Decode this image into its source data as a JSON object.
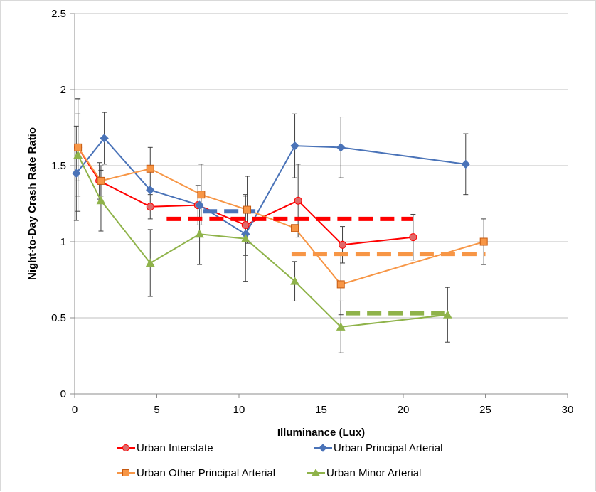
{
  "chart_data": {
    "type": "line",
    "xlabel": "Illuminance (Lux)",
    "ylabel": "Night-to-Day Crash Rate Ratio",
    "xlim": [
      0,
      30
    ],
    "ylim": [
      0,
      2.5
    ],
    "x_ticks": [
      "0",
      "5",
      "10",
      "15",
      "20",
      "25",
      "30"
    ],
    "y_ticks": [
      "0",
      "0.5",
      "1",
      "1.5",
      "2",
      "2.5"
    ],
    "grid": "horizontal",
    "legend_position": "bottom",
    "series": [
      {
        "name": "Urban Interstate",
        "color": "#ff0000",
        "marker": "circle",
        "points": [
          {
            "x": 0.2,
            "y": 1.62,
            "err": 0.22
          },
          {
            "x": 1.5,
            "y": 1.4,
            "err": 0.12
          },
          {
            "x": 4.6,
            "y": 1.23,
            "err": 0.08
          },
          {
            "x": 7.5,
            "y": 1.24,
            "err": 0.13
          },
          {
            "x": 10.4,
            "y": 1.11,
            "err": 0.2
          },
          {
            "x": 13.6,
            "y": 1.27,
            "err": 0.24
          },
          {
            "x": 16.3,
            "y": 0.98,
            "err": 0.12
          },
          {
            "x": 20.6,
            "y": 1.03,
            "err": 0.15
          }
        ],
        "average": {
          "y": 1.15,
          "x_from": 5.6,
          "x_to": 20.6
        }
      },
      {
        "name": "Urban Principal Arterial",
        "color": "#4a73b8",
        "marker": "diamond",
        "points": [
          {
            "x": 0.1,
            "y": 1.45,
            "err": 0.31
          },
          {
            "x": 1.8,
            "y": 1.68,
            "err": 0.17
          },
          {
            "x": 4.6,
            "y": 1.34,
            "err": 0.0
          },
          {
            "x": 7.6,
            "y": 1.24,
            "err": 0.0
          },
          {
            "x": 10.4,
            "y": 1.05,
            "err": 0.0
          },
          {
            "x": 13.4,
            "y": 1.63,
            "err": 0.21
          },
          {
            "x": 16.2,
            "y": 1.62,
            "err": 0.2
          },
          {
            "x": 23.8,
            "y": 1.51,
            "err": 0.2
          }
        ],
        "average": {
          "y": 1.2,
          "x_from": 7.8,
          "x_to": 11.0
        }
      },
      {
        "name": "Urban Other Principal Arterial",
        "color": "#f79646",
        "marker": "square",
        "points": [
          {
            "x": 0.2,
            "y": 1.62,
            "err": 0.32
          },
          {
            "x": 1.6,
            "y": 1.4,
            "err": 0.1
          },
          {
            "x": 4.6,
            "y": 1.48,
            "err": 0.14
          },
          {
            "x": 7.7,
            "y": 1.31,
            "err": 0.2
          },
          {
            "x": 10.5,
            "y": 1.21,
            "err": 0.22
          },
          {
            "x": 13.4,
            "y": 1.09,
            "err": 0.0
          },
          {
            "x": 16.2,
            "y": 0.72,
            "err": 0.2
          },
          {
            "x": 24.9,
            "y": 1.0,
            "err": 0.15
          }
        ],
        "average": {
          "y": 0.92,
          "x_from": 13.2,
          "x_to": 25.0
        }
      },
      {
        "name": "Urban Minor Arterial",
        "color": "#8fb34a",
        "marker": "triangle",
        "points": [
          {
            "x": 0.2,
            "y": 1.57,
            "err": 0.37
          },
          {
            "x": 1.6,
            "y": 1.27,
            "err": 0.2
          },
          {
            "x": 4.6,
            "y": 0.86,
            "err": 0.22
          },
          {
            "x": 7.6,
            "y": 1.05,
            "err": 0.2
          },
          {
            "x": 10.4,
            "y": 1.02,
            "err": 0.28
          },
          {
            "x": 13.4,
            "y": 0.74,
            "err": 0.13
          },
          {
            "x": 16.2,
            "y": 0.44,
            "err": 0.17
          },
          {
            "x": 22.7,
            "y": 0.52,
            "err": 0.18
          }
        ],
        "average": {
          "y": 0.53,
          "x_from": 16.5,
          "x_to": 22.5
        }
      }
    ]
  }
}
